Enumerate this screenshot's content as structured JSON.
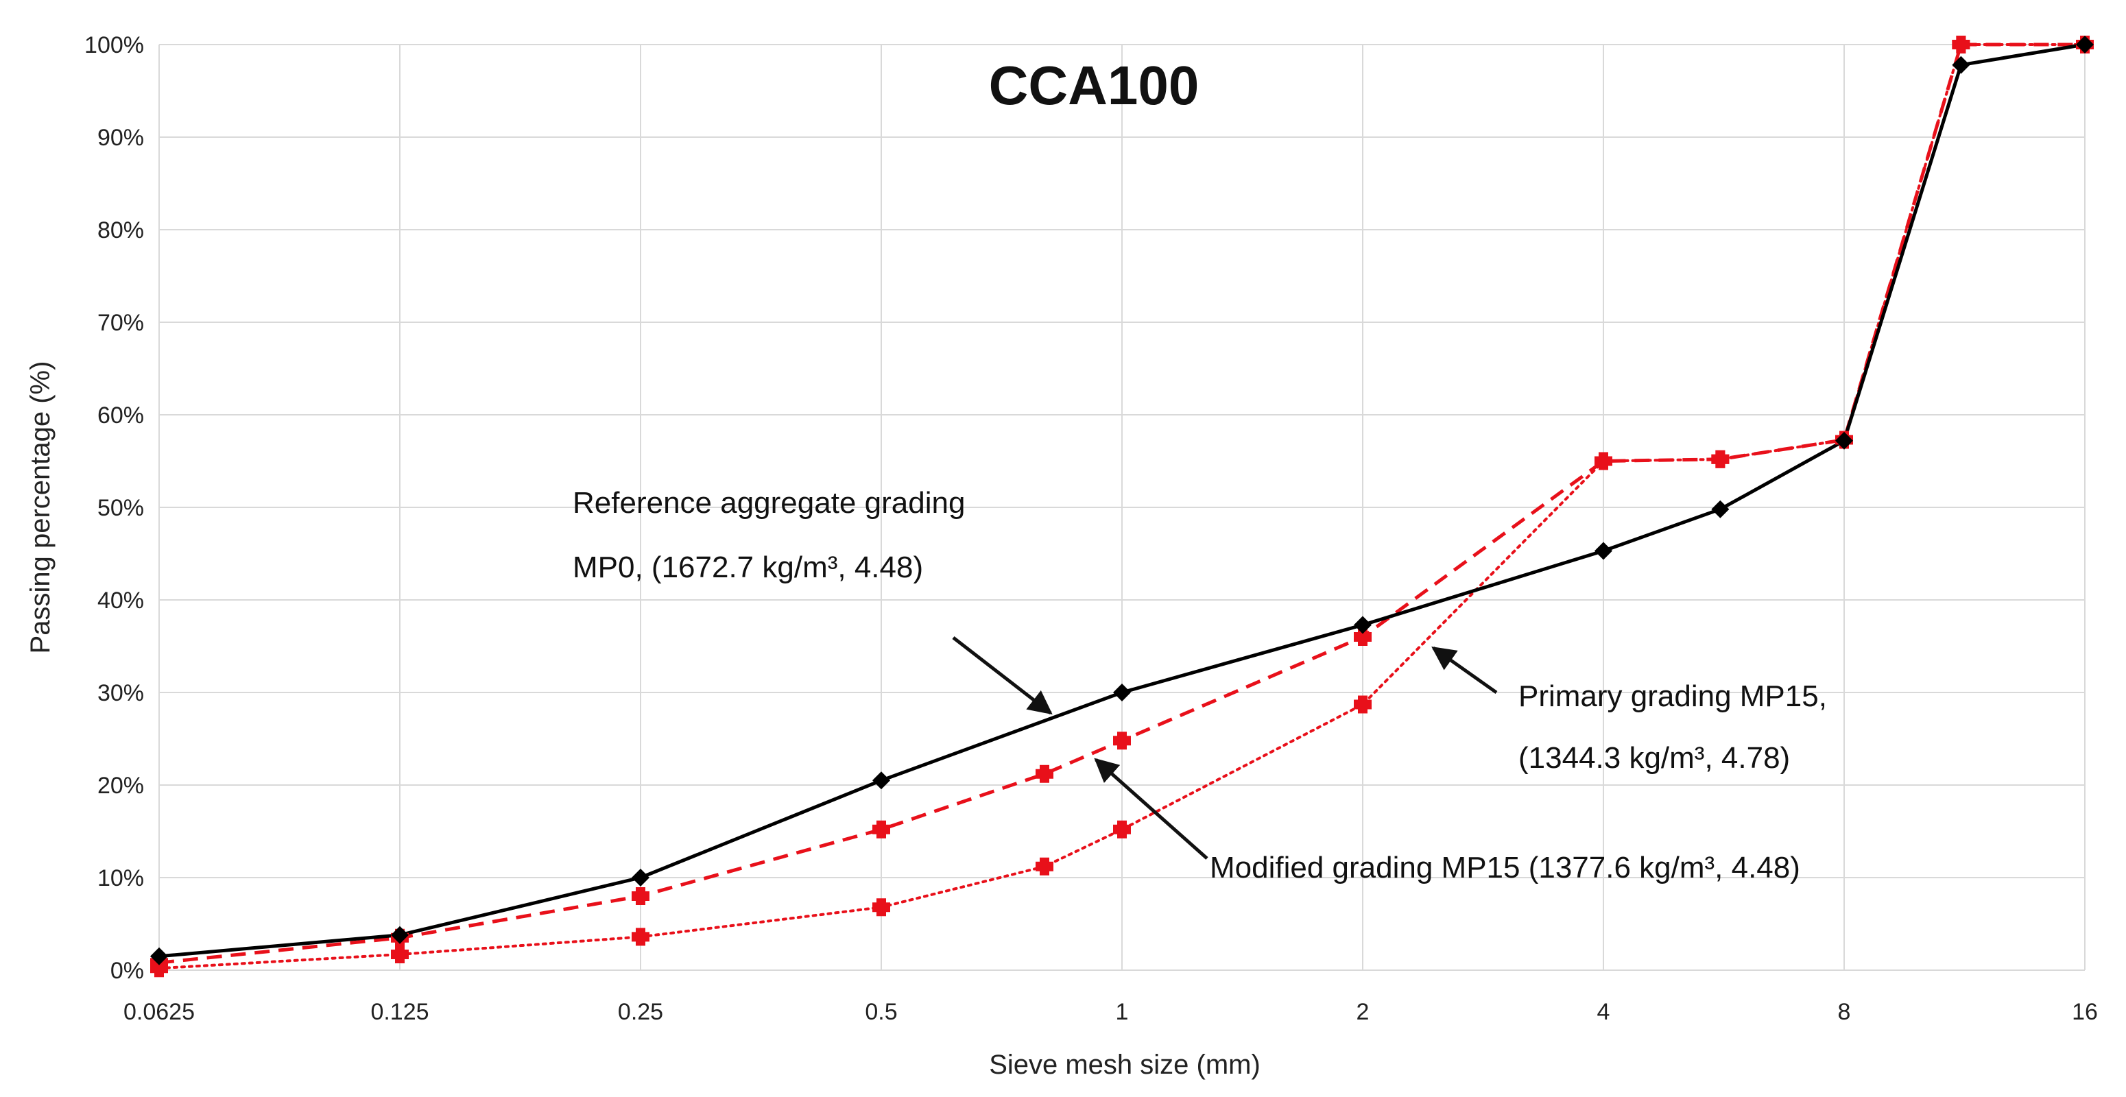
{
  "chart_data": {
    "type": "line",
    "title": "CCA100",
    "xlabel": "Sieve mesh size (mm)",
    "ylabel": "Passing percentage (%)",
    "x_scale": "log2",
    "x_ticks": [
      "0.0625",
      "0.125",
      "0.25",
      "0.5",
      "1",
      "2",
      "4",
      "8",
      "16"
    ],
    "x_tick_values": [
      0.0625,
      0.125,
      0.25,
      0.5,
      1,
      2,
      4,
      8,
      16
    ],
    "y_ticks": [
      "0%",
      "10%",
      "20%",
      "30%",
      "40%",
      "50%",
      "60%",
      "70%",
      "80%",
      "90%",
      "100%"
    ],
    "y_tick_values": [
      0,
      10,
      20,
      30,
      40,
      50,
      60,
      70,
      80,
      90,
      100
    ],
    "xlim": [
      0.0625,
      16
    ],
    "ylim": [
      0,
      100
    ],
    "grid": true,
    "series": [
      {
        "name": "Reference aggregate grading MP0",
        "color": "#000000",
        "line": "solid",
        "marker": "diamond",
        "x": [
          0.0625,
          0.125,
          0.25,
          0.5,
          1,
          2,
          4,
          5.6,
          8,
          11.2,
          16
        ],
        "y": [
          1.5,
          3.8,
          10.0,
          20.5,
          30.0,
          37.3,
          45.3,
          49.8,
          57.2,
          97.8,
          100
        ]
      },
      {
        "name": "Modified grading MP15",
        "color": "#e8101a",
        "line": "dashed",
        "marker": "cross",
        "x": [
          0.0625,
          0.125,
          0.25,
          0.5,
          0.8,
          1,
          2,
          4,
          5.6,
          8,
          11.2,
          16
        ],
        "y": [
          0.8,
          3.5,
          8.0,
          15.2,
          21.2,
          24.8,
          36.0,
          55.0,
          55.2,
          57.3,
          100,
          100
        ]
      },
      {
        "name": "Primary grading MP15",
        "color": "#e8101a",
        "line": "dotted",
        "marker": "cross",
        "x": [
          0.0625,
          0.125,
          0.25,
          0.5,
          0.8,
          1,
          2,
          4,
          5.6,
          8,
          11.2,
          16
        ],
        "y": [
          0.2,
          1.7,
          3.6,
          6.8,
          11.2,
          15.2,
          28.7,
          55.0,
          55.2,
          57.3,
          100,
          100
        ]
      }
    ],
    "annotations": [
      {
        "id": "ref",
        "lines": [
          "Reference aggregate grading",
          "MP0, (1672.7 kg/m³, 4.48)"
        ]
      },
      {
        "id": "primary",
        "lines": [
          "Primary grading MP15,",
          "(1344.3 kg/m³, 4.78)"
        ]
      },
      {
        "id": "modified",
        "lines": [
          "Modified grading MP15 (1377.6 kg/m³, 4.48)"
        ]
      }
    ]
  }
}
